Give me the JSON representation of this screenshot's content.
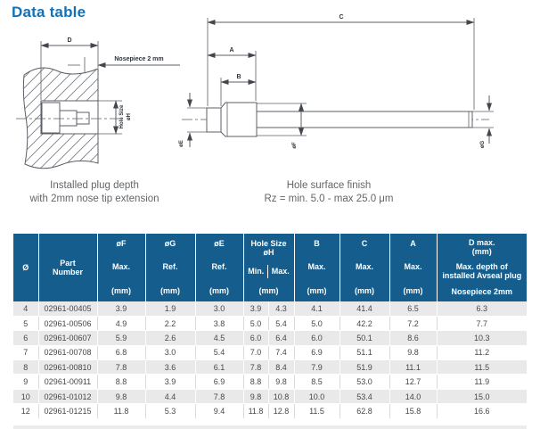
{
  "title": "Data table",
  "diagram_left": {
    "dim_d": "D",
    "nosepiece_label": "Nosepiece 2 mm",
    "hole_size_label_1": "Hole Size",
    "hole_size_label_2": "øH",
    "caption_1": "Installed plug depth",
    "caption_2": "with 2mm nose tip extension"
  },
  "diagram_right": {
    "dim_a": "A",
    "dim_b": "B",
    "dim_c": "C",
    "dia_e": "øE",
    "dia_f": "øF",
    "dia_g": "øG",
    "caption_1": "Hole surface finish",
    "caption_2": "Rz = min. 5.0 - max 25.0 μm"
  },
  "table": {
    "header": {
      "dia": "Ø",
      "part": "Part Number",
      "f_top": "øF",
      "f_mid": "Max.",
      "f_unit": "(mm)",
      "g_top": "øG",
      "g_mid": "Ref.",
      "g_unit": "(mm)",
      "e_top": "øE",
      "e_mid": "Ref.",
      "e_unit": "(mm)",
      "hole_top_1": "Hole Size",
      "hole_top_2": "øH",
      "hole_min": "Min.",
      "hole_max": "Max.",
      "hole_unit": "(mm)",
      "b_top": "B",
      "b_mid": "Max.",
      "b_unit": "(mm)",
      "c_top": "C",
      "c_mid": "Max.",
      "c_unit": "(mm)",
      "a_top": "A",
      "a_mid": "Max.",
      "a_unit": "(mm)",
      "d_line1": "D max.",
      "d_line2": "(mm)",
      "d_line3": "Max. depth of installed Avseal plug",
      "d_line4": "Nosepiece 2mm"
    },
    "rows": [
      [
        "4",
        "02961-00405",
        "3.9",
        "1.9",
        "3.0",
        "3.9",
        "4.3",
        "4.1",
        "41.4",
        "6.5",
        "6.3"
      ],
      [
        "5",
        "02961-00506",
        "4.9",
        "2.2",
        "3.8",
        "5.0",
        "5.4",
        "5.0",
        "42.2",
        "7.2",
        "7.7"
      ],
      [
        "6",
        "02961-00607",
        "5.9",
        "2.6",
        "4.5",
        "6.0",
        "6.4",
        "6.0",
        "50.1",
        "8.6",
        "10.3"
      ],
      [
        "7",
        "02961-00708",
        "6.8",
        "3.0",
        "5.4",
        "7.0",
        "7.4",
        "6.9",
        "51.1",
        "9.8",
        "11.2"
      ],
      [
        "8",
        "02961-00810",
        "7.8",
        "3.6",
        "6.1",
        "7.8",
        "8.4",
        "7.9",
        "51.9",
        "11.1",
        "11.5"
      ],
      [
        "9",
        "02961-00911",
        "8.8",
        "3.9",
        "6.9",
        "8.8",
        "9.8",
        "8.5",
        "53.0",
        "12.7",
        "11.9"
      ],
      [
        "10",
        "02961-01012",
        "9.8",
        "4.4",
        "7.8",
        "9.8",
        "10.8",
        "10.0",
        "53.4",
        "14.0",
        "15.0"
      ],
      [
        "12",
        "02961-01215",
        "11.8",
        "5.3",
        "9.4",
        "11.8",
        "12.8",
        "11.5",
        "62.8",
        "15.8",
        "16.6"
      ]
    ]
  },
  "colors": {
    "header_bg": "#145D8D",
    "title_blue": "#1371B5",
    "row_alt": "#E9E9E9",
    "body_text": "#45484D",
    "drawing_line": "#5B5F66"
  }
}
